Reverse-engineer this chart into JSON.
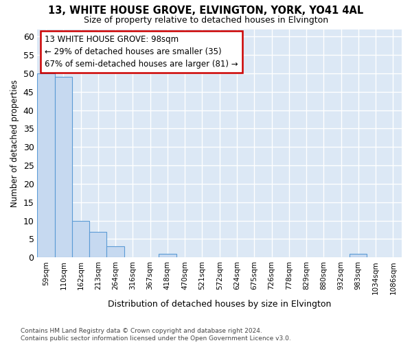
{
  "title": "13, WHITE HOUSE GROVE, ELVINGTON, YORK, YO41 4AL",
  "subtitle": "Size of property relative to detached houses in Elvington",
  "xlabel": "Distribution of detached houses by size in Elvington",
  "ylabel": "Number of detached properties",
  "bin_labels": [
    "59sqm",
    "110sqm",
    "162sqm",
    "213sqm",
    "264sqm",
    "316sqm",
    "367sqm",
    "418sqm",
    "470sqm",
    "521sqm",
    "572sqm",
    "624sqm",
    "675sqm",
    "726sqm",
    "778sqm",
    "829sqm",
    "880sqm",
    "932sqm",
    "983sqm",
    "1034sqm",
    "1086sqm"
  ],
  "bar_values": [
    50,
    49,
    10,
    7,
    3,
    0,
    0,
    1,
    0,
    0,
    0,
    0,
    0,
    0,
    0,
    0,
    0,
    0,
    1,
    0,
    0
  ],
  "bar_color": "#c6d9f0",
  "bar_edge_color": "#5b9bd5",
  "plot_bg_color": "#dce8f5",
  "fig_bg_color": "#ffffff",
  "grid_color": "#ffffff",
  "ylim": [
    0,
    62
  ],
  "yticks": [
    0,
    5,
    10,
    15,
    20,
    25,
    30,
    35,
    40,
    45,
    50,
    55,
    60
  ],
  "annotation_line1": "13 WHITE HOUSE GROVE: 98sqm",
  "annotation_line2": "← 29% of detached houses are smaller (35)",
  "annotation_line3": "67% of semi-detached houses are larger (81) →",
  "annotation_box_color": "#ffffff",
  "annotation_box_edge_color": "#cc0000",
  "footnote": "Contains HM Land Registry data © Crown copyright and database right 2024.\nContains public sector information licensed under the Open Government Licence v3.0."
}
